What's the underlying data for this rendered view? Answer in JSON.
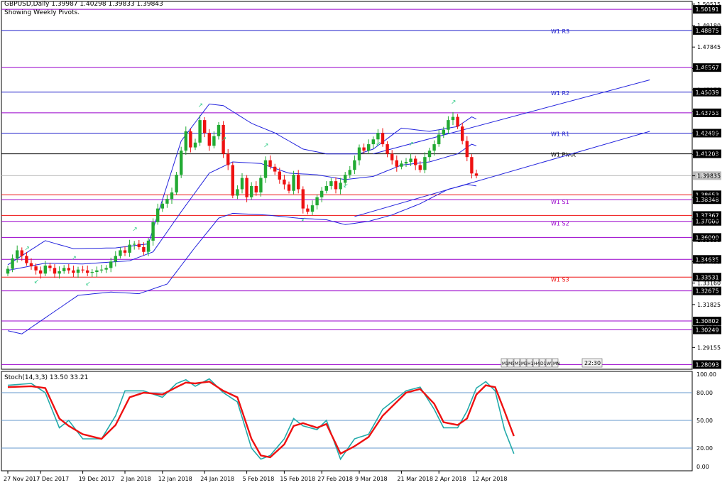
{
  "header": {
    "symbol_line": "GBPUSD,Daily  1.39987 1.40298 1.39833 1.39843",
    "subtitle": "Showing Weekly Pivots."
  },
  "colors": {
    "bull": "#22aa33",
    "bear": "#ee1111",
    "band": "#2222dd",
    "pivot_resistance": "#2222cc",
    "pivot_support": "#ee1111",
    "level_purple": "#9900cc",
    "pivot_black": "#000000",
    "current_price": "#bbbbbb",
    "stoch_main": "#22aaaa",
    "stoch_signal": "#ee1111",
    "stoch_level": "#6699cc",
    "fractal": "#33cc88"
  },
  "chart_data": {
    "type": "candlestick",
    "title": "GBPUSD,Daily  1.39987 1.40298 1.39833 1.39843",
    "price_axis": {
      "ylim": [
        1.278,
        1.5055
      ],
      "tick_labels": [
        {
          "v": 1.50515,
          "t": "1.50515"
        },
        {
          "v": 1.4918,
          "t": "1.49180"
        },
        {
          "v": 1.47845,
          "t": "1.47845"
        },
        {
          "v": 1.4651,
          "t": "1.46510"
        },
        {
          "v": 1.45175,
          "t": "1.45175"
        },
        {
          "v": 1.4384,
          "t": "1.43840"
        },
        {
          "v": 1.42505,
          "t": "1.42505"
        },
        {
          "v": 1.4117,
          "t": "1.41170"
        },
        {
          "v": 1.39835,
          "t": "1.39835"
        },
        {
          "v": 1.385,
          "t": "1.38500"
        },
        {
          "v": 1.37165,
          "t": "1.37165"
        },
        {
          "v": 1.3583,
          "t": "1.35830"
        },
        {
          "v": 1.34495,
          "t": "1.34495"
        },
        {
          "v": 1.3316,
          "t": "1.33160"
        },
        {
          "v": 1.31825,
          "t": "1.31825"
        },
        {
          "v": 1.3049,
          "t": "1.30490"
        },
        {
          "v": 1.29155,
          "t": "1.29155"
        }
      ]
    },
    "levels": [
      {
        "price": 1.50191,
        "label_box": "1.50191",
        "style": "purple"
      },
      {
        "price": 1.48875,
        "label_box": "1.48875",
        "style": "resistance",
        "name": "W1 R3"
      },
      {
        "price": 1.46567,
        "label_box": "1.46567",
        "style": "purple"
      },
      {
        "price": 1.45039,
        "label_box": "1.45039",
        "style": "resistance",
        "name": "W1 R2"
      },
      {
        "price": 1.43753,
        "label_box": "1.43753",
        "style": "purple"
      },
      {
        "price": 1.42489,
        "label_box": "1.42489",
        "style": "resistance",
        "name": "W1 R1"
      },
      {
        "price": 1.41203,
        "label_box": "1.41203",
        "style": "pivot",
        "name": "W1 Pivot"
      },
      {
        "price": 1.39843,
        "label_box": "1.39843",
        "style": "current"
      },
      {
        "price": 1.38653,
        "label_box": "1.38653",
        "style": "support"
      },
      {
        "price": 1.38348,
        "label_box": "1.38348",
        "style": "purple",
        "name": "W1 S1"
      },
      {
        "price": 1.37367,
        "label_box": "1.37367",
        "style": "support"
      },
      {
        "price": 1.37,
        "label_box": "1.37000",
        "style": "purple",
        "name": "W1 S2"
      },
      {
        "price": 1.36,
        "label_box": "1.36000",
        "style": "purple"
      },
      {
        "price": 1.34635,
        "label_box": "1.34635",
        "style": "purple"
      },
      {
        "price": 1.33531,
        "label_box": "1.33531",
        "style": "support",
        "name": "W1 S3"
      },
      {
        "price": 1.32675,
        "label_box": "1.32675",
        "style": "purple"
      },
      {
        "price": 1.30802,
        "label_box": "1.30802",
        "style": "purple"
      },
      {
        "price": 1.30249,
        "label_box": "1.30249",
        "style": "purple"
      },
      {
        "price": 1.28093,
        "label_box": "1.28093",
        "style": "purple"
      }
    ],
    "x_labels": [
      {
        "i": 0,
        "t": "27 Nov 2017"
      },
      {
        "i": 7,
        "t": "7 Dec 2017"
      },
      {
        "i": 16,
        "t": "19 Dec 2017"
      },
      {
        "i": 25,
        "t": "2 Jan 2018"
      },
      {
        "i": 33,
        "t": "12 Jan 2018"
      },
      {
        "i": 42,
        "t": "24 Jan 2018"
      },
      {
        "i": 51,
        "t": "5 Feb 2018"
      },
      {
        "i": 59,
        "t": "15 Feb 2018"
      },
      {
        "i": 67,
        "t": "27 Feb 2018"
      },
      {
        "i": 75,
        "t": "9 Mar 2018"
      },
      {
        "i": 84,
        "t": "21 Mar 2018"
      },
      {
        "i": 92,
        "t": "2 Apr 2018"
      },
      {
        "i": 100,
        "t": "12 Apr 2018"
      }
    ],
    "closes": [
      1.3405,
      1.347,
      1.352,
      1.3485,
      1.344,
      1.342,
      1.3395,
      1.3375,
      1.3425,
      1.341,
      1.3375,
      1.339,
      1.341,
      1.3395,
      1.338,
      1.34,
      1.3395,
      1.338,
      1.3385,
      1.3395,
      1.34,
      1.341,
      1.345,
      1.3485,
      1.352,
      1.3505,
      1.3555,
      1.356,
      1.354,
      1.351,
      1.358,
      1.3695,
      1.378,
      1.381,
      1.384,
      1.388,
      1.399,
      1.414,
      1.426,
      1.416,
      1.419,
      1.433,
      1.425,
      1.417,
      1.423,
      1.43,
      1.412,
      1.405,
      1.386,
      1.39,
      1.397,
      1.385,
      1.392,
      1.388,
      1.397,
      1.408,
      1.404,
      1.401,
      1.396,
      1.393,
      1.389,
      1.399,
      1.39,
      1.378,
      1.376,
      1.38,
      1.385,
      1.389,
      1.392,
      1.395,
      1.39,
      1.394,
      1.399,
      1.402,
      1.408,
      1.416,
      1.414,
      1.418,
      1.421,
      1.425,
      1.418,
      1.412,
      1.408,
      1.404,
      1.406,
      1.407,
      1.409,
      1.405,
      1.402,
      1.41,
      1.414,
      1.418,
      1.424,
      1.427,
      1.433,
      1.435,
      1.429,
      1.42,
      1.41,
      1.3998,
      1.3984
    ],
    "bollinger": {
      "upper_anchors": [
        [
          0,
          1.343
        ],
        [
          8,
          1.358
        ],
        [
          14,
          1.353
        ],
        [
          23,
          1.3535
        ],
        [
          30,
          1.356
        ],
        [
          37,
          1.42
        ],
        [
          43,
          1.443
        ],
        [
          46,
          1.442
        ],
        [
          52,
          1.431
        ],
        [
          57,
          1.425
        ],
        [
          63,
          1.415
        ],
        [
          68,
          1.412
        ],
        [
          75,
          1.412
        ],
        [
          78,
          1.415
        ],
        [
          84,
          1.428
        ],
        [
          90,
          1.426
        ],
        [
          96,
          1.429
        ],
        [
          99,
          1.435
        ],
        [
          102,
          1.431
        ]
      ],
      "middle_anchors": [
        [
          0,
          1.3395
        ],
        [
          8,
          1.344
        ],
        [
          16,
          1.3435
        ],
        [
          26,
          1.3455
        ],
        [
          31,
          1.351
        ],
        [
          37,
          1.376
        ],
        [
          43,
          1.4
        ],
        [
          48,
          1.407
        ],
        [
          54,
          1.406
        ],
        [
          60,
          1.4
        ],
        [
          66,
          1.399
        ],
        [
          72,
          1.396
        ],
        [
          78,
          1.398
        ],
        [
          84,
          1.405
        ],
        [
          90,
          1.407
        ],
        [
          96,
          1.412
        ],
        [
          99,
          1.418
        ],
        [
          102,
          1.415
        ]
      ],
      "lower_anchors": [
        [
          0,
          1.302
        ],
        [
          3,
          1.3
        ],
        [
          8,
          1.31
        ],
        [
          15,
          1.324
        ],
        [
          22,
          1.326
        ],
        [
          28,
          1.325
        ],
        [
          34,
          1.331
        ],
        [
          40,
          1.354
        ],
        [
          45,
          1.372
        ],
        [
          48,
          1.375
        ],
        [
          55,
          1.374
        ],
        [
          62,
          1.372
        ],
        [
          68,
          1.371
        ],
        [
          72,
          1.368
        ],
        [
          77,
          1.37
        ],
        [
          82,
          1.374
        ],
        [
          88,
          1.381
        ],
        [
          94,
          1.39
        ],
        [
          98,
          1.393
        ],
        [
          102,
          1.391
        ]
      ]
    },
    "trend_channel": [
      {
        "from": [
          78,
          1.412
        ],
        "to": [
          137,
          1.458
        ]
      },
      {
        "from": [
          74,
          1.373
        ],
        "to": [
          137,
          1.426
        ]
      }
    ],
    "stochastic": {
      "label": "Stoch(14,3,3) 13.50 33.21",
      "ylim": [
        0,
        100
      ],
      "tick_labels": [
        "100.00",
        "80.00",
        "50.00",
        "20.00",
        "0.00"
      ],
      "levels": [
        80,
        50,
        20
      ],
      "main_anchors": [
        [
          0,
          88
        ],
        [
          5,
          90
        ],
        [
          8,
          80
        ],
        [
          11,
          42
        ],
        [
          13,
          50
        ],
        [
          16,
          30
        ],
        [
          20,
          30
        ],
        [
          23,
          55
        ],
        [
          25,
          82
        ],
        [
          29,
          82
        ],
        [
          33,
          75
        ],
        [
          36,
          90
        ],
        [
          38,
          94
        ],
        [
          40,
          87
        ],
        [
          43,
          95
        ],
        [
          46,
          80
        ],
        [
          49,
          70
        ],
        [
          52,
          20
        ],
        [
          54,
          8
        ],
        [
          56,
          12
        ],
        [
          59,
          30
        ],
        [
          61,
          52
        ],
        [
          63,
          44
        ],
        [
          66,
          40
        ],
        [
          68,
          50
        ],
        [
          71,
          8
        ],
        [
          74,
          30
        ],
        [
          77,
          35
        ],
        [
          80,
          62
        ],
        [
          85,
          82
        ],
        [
          88,
          86
        ],
        [
          91,
          62
        ],
        [
          93,
          42
        ],
        [
          96,
          42
        ],
        [
          98,
          60
        ],
        [
          100,
          85
        ],
        [
          102,
          92
        ],
        [
          104,
          82
        ],
        [
          106,
          40
        ],
        [
          108,
          14
        ]
      ],
      "signal_anchors": [
        [
          0,
          86
        ],
        [
          5,
          87
        ],
        [
          8,
          85
        ],
        [
          11,
          52
        ],
        [
          13,
          44
        ],
        [
          16,
          35
        ],
        [
          20,
          30
        ],
        [
          23,
          45
        ],
        [
          26,
          75
        ],
        [
          29,
          80
        ],
        [
          33,
          78
        ],
        [
          36,
          86
        ],
        [
          38,
          91
        ],
        [
          40,
          90
        ],
        [
          43,
          92
        ],
        [
          46,
          82
        ],
        [
          49,
          75
        ],
        [
          52,
          30
        ],
        [
          54,
          12
        ],
        [
          56,
          10
        ],
        [
          59,
          24
        ],
        [
          61,
          44
        ],
        [
          63,
          47
        ],
        [
          66,
          42
        ],
        [
          68,
          46
        ],
        [
          71,
          14
        ],
        [
          74,
          22
        ],
        [
          77,
          32
        ],
        [
          80,
          55
        ],
        [
          85,
          80
        ],
        [
          88,
          84
        ],
        [
          91,
          68
        ],
        [
          93,
          48
        ],
        [
          96,
          45
        ],
        [
          98,
          52
        ],
        [
          100,
          78
        ],
        [
          102,
          88
        ],
        [
          104,
          86
        ],
        [
          106,
          60
        ],
        [
          108,
          33
        ]
      ]
    },
    "timeframe_boxes": [
      "M1",
      "M5",
      "M15",
      "M30",
      "H1",
      "H4",
      "D1",
      "W1",
      "MN"
    ],
    "clock_label": "22:30"
  }
}
